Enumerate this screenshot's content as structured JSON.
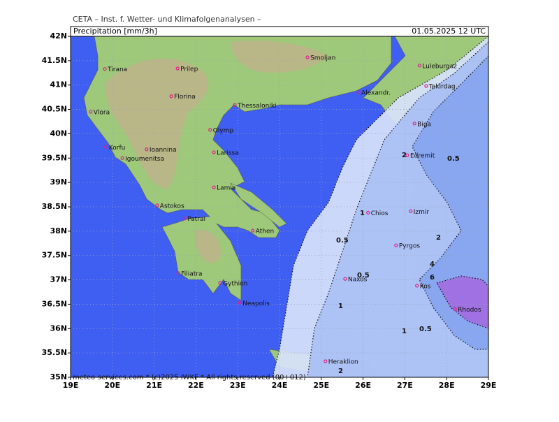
{
  "header": {
    "source": "CETA – Inst. f. Wetter- und Klimafolgenanalysen –",
    "parameter": "Precipitation [mm/3h]",
    "valid": "01.05.2025 12 UTC"
  },
  "footer": "meteo-services.com * (c)2025 IWKF * All rights reserved (00+012)",
  "map": {
    "lonlim": [
      19,
      29
    ],
    "latlim": [
      35,
      42
    ],
    "lonticks": [
      {
        "value": 19,
        "label": "19E"
      },
      {
        "value": 20,
        "label": "20E"
      },
      {
        "value": 21,
        "label": "21E"
      },
      {
        "value": 22,
        "label": "22E"
      },
      {
        "value": 23,
        "label": "23E"
      },
      {
        "value": 24,
        "label": "24E"
      },
      {
        "value": 25,
        "label": "25E"
      },
      {
        "value": 26,
        "label": "26E"
      },
      {
        "value": 27,
        "label": "27E"
      },
      {
        "value": 28,
        "label": "28E"
      },
      {
        "value": 29,
        "label": "29E"
      }
    ],
    "latticks": [
      {
        "value": 35,
        "label": "35N"
      },
      {
        "value": 35.5,
        "label": "35.5N"
      },
      {
        "value": 36,
        "label": "36N"
      },
      {
        "value": 36.5,
        "label": "36.5N"
      },
      {
        "value": 37,
        "label": "37N"
      },
      {
        "value": 37.5,
        "label": "37.5N"
      },
      {
        "value": 38,
        "label": "38N"
      },
      {
        "value": 38.5,
        "label": "38.5N"
      },
      {
        "value": 39,
        "label": "39N"
      },
      {
        "value": 39.5,
        "label": "39.5N"
      },
      {
        "value": 40,
        "label": "40N"
      },
      {
        "value": 40.5,
        "label": "40.5N"
      },
      {
        "value": 41,
        "label": "41N"
      },
      {
        "value": 41.5,
        "label": "41.5N"
      },
      {
        "value": 42,
        "label": "42N"
      }
    ],
    "cities": [
      {
        "name": "Tirana",
        "lon": 19.82,
        "lat": 41.33
      },
      {
        "name": "Prilep",
        "lon": 21.56,
        "lat": 41.34
      },
      {
        "name": "Smoljan",
        "lon": 24.67,
        "lat": 41.57
      },
      {
        "name": "Luleburgaz",
        "lon": 27.35,
        "lat": 41.4
      },
      {
        "name": "Tekirdag",
        "lon": 27.51,
        "lat": 40.98
      },
      {
        "name": "Alexandr.",
        "lon": 25.89,
        "lat": 40.85
      },
      {
        "name": "Florina",
        "lon": 21.41,
        "lat": 40.77
      },
      {
        "name": "Thessaloniki",
        "lon": 22.93,
        "lat": 40.59
      },
      {
        "name": "Vlora",
        "lon": 19.48,
        "lat": 40.45
      },
      {
        "name": "Olymp",
        "lon": 22.34,
        "lat": 40.08
      },
      {
        "name": "Biga",
        "lon": 27.23,
        "lat": 40.21
      },
      {
        "name": "Korfu",
        "lon": 19.85,
        "lat": 39.73
      },
      {
        "name": "Ioannina",
        "lon": 20.82,
        "lat": 39.68
      },
      {
        "name": "Igoumenitsa",
        "lon": 20.24,
        "lat": 39.5
      },
      {
        "name": "Larissa",
        "lon": 22.43,
        "lat": 39.62
      },
      {
        "name": "Edremit",
        "lon": 27.06,
        "lat": 39.56
      },
      {
        "name": "Lamia",
        "lon": 22.43,
        "lat": 38.9
      },
      {
        "name": "Astokos",
        "lon": 21.07,
        "lat": 38.53
      },
      {
        "name": "Patrai",
        "lon": 21.73,
        "lat": 38.26
      },
      {
        "name": "Chios",
        "lon": 26.12,
        "lat": 38.38
      },
      {
        "name": "Izmir",
        "lon": 27.14,
        "lat": 38.41
      },
      {
        "name": "Athen",
        "lon": 23.36,
        "lat": 38.01
      },
      {
        "name": "Pyrgos",
        "lon": 26.79,
        "lat": 37.71
      },
      {
        "name": "Filiatra",
        "lon": 21.58,
        "lat": 37.14
      },
      {
        "name": "Gythion",
        "lon": 22.58,
        "lat": 36.94
      },
      {
        "name": "Naxos",
        "lon": 25.57,
        "lat": 37.02
      },
      {
        "name": "Kos",
        "lon": 27.29,
        "lat": 36.88
      },
      {
        "name": "Neapolis",
        "lon": 23.05,
        "lat": 36.53
      },
      {
        "name": "Rhodos",
        "lon": 28.2,
        "lat": 36.4
      },
      {
        "name": "Heraklion",
        "lon": 25.1,
        "lat": 35.33
      }
    ],
    "contour_labels": [
      "0.5",
      "0.5",
      "0.5",
      "0.5",
      "1",
      "1",
      "1",
      "2",
      "2",
      "2",
      "4",
      "6"
    ]
  }
}
